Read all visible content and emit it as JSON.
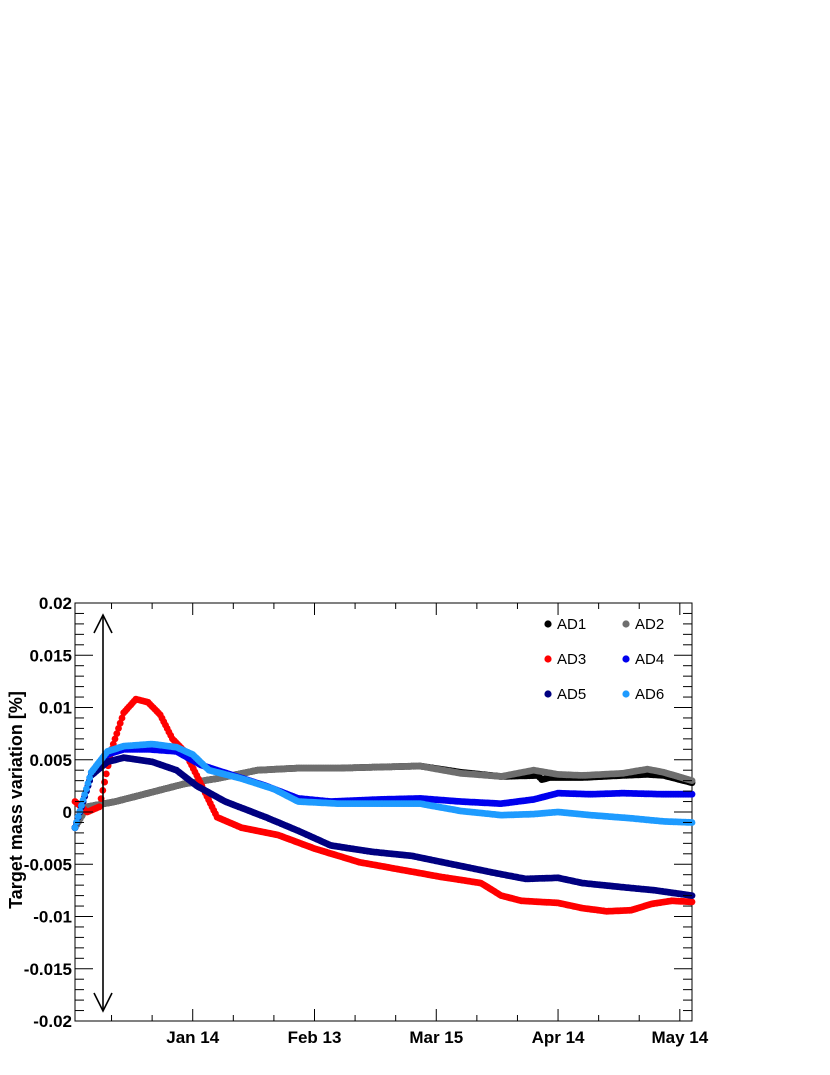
{
  "chart_data": {
    "type": "scatter",
    "title": "",
    "xlabel": "",
    "ylabel": "Target mass variation [%]",
    "x_tick_labels": [
      "Jan 14",
      "Feb 13",
      "Mar 15",
      "Apr 14",
      "May 14"
    ],
    "x_tick_values": [
      14,
      44,
      74,
      104,
      134
    ],
    "x_axis_note": "day index: Jan 14 = 14 (Dec 16 = -15 at left edge)",
    "xlim": [
      -15,
      137
    ],
    "ylim": [
      -0.02,
      0.02
    ],
    "y_tick_labels": [
      "-0.02",
      "-0.015",
      "-0.01",
      "-0.005",
      "0",
      "0.005",
      "0.01",
      "0.015",
      "0.02"
    ],
    "y_tick_values": [
      -0.02,
      -0.015,
      -0.01,
      -0.005,
      0,
      0.005,
      0.01,
      0.015,
      0.02
    ],
    "grid": false,
    "legend_position": "top-right",
    "annotation": "double-headed vertical arrow near left edge spanning full y range",
    "series": [
      {
        "name": "AD1",
        "color": "#000000",
        "points": [
          [
            -15,
            -0.0015
          ],
          [
            -12,
            0.0005
          ],
          [
            -5,
            0.001
          ],
          [
            5,
            0.002
          ],
          [
            12,
            0.0027
          ],
          [
            20,
            0.0032
          ],
          [
            30,
            0.004
          ],
          [
            40,
            0.0042
          ],
          [
            50,
            0.0042
          ],
          [
            60,
            0.0043
          ],
          [
            70,
            0.0044
          ],
          [
            80,
            0.0038
          ],
          [
            90,
            0.0034
          ],
          [
            99,
            0.0035
          ],
          [
            100,
            0.0031
          ],
          [
            102,
            0.0033
          ],
          [
            110,
            0.0033
          ],
          [
            120,
            0.0035
          ],
          [
            126,
            0.0036
          ],
          [
            130,
            0.0035
          ],
          [
            137,
            0.0028
          ]
        ]
      },
      {
        "name": "AD2",
        "color": "#6e6e6e",
        "points": [
          [
            -15,
            -0.0015
          ],
          [
            -12,
            0.0005
          ],
          [
            -5,
            0.001
          ],
          [
            5,
            0.002
          ],
          [
            12,
            0.0027
          ],
          [
            20,
            0.0032
          ],
          [
            30,
            0.004
          ],
          [
            40,
            0.0042
          ],
          [
            50,
            0.0042
          ],
          [
            60,
            0.0043
          ],
          [
            70,
            0.0044
          ],
          [
            80,
            0.0037
          ],
          [
            90,
            0.0034
          ],
          [
            98,
            0.004
          ],
          [
            104,
            0.0036
          ],
          [
            110,
            0.0035
          ],
          [
            120,
            0.0037
          ],
          [
            126,
            0.0041
          ],
          [
            130,
            0.0038
          ],
          [
            137,
            0.003
          ]
        ]
      },
      {
        "name": "AD3",
        "color": "#ff0000",
        "points": [
          [
            -15,
            0.001
          ],
          [
            -12,
            0
          ],
          [
            -9,
            0.0005
          ],
          [
            -6,
            0.006
          ],
          [
            -3,
            0.0095
          ],
          [
            0,
            0.0108
          ],
          [
            3,
            0.0105
          ],
          [
            6,
            0.0093
          ],
          [
            9,
            0.007
          ],
          [
            12,
            0.0058
          ],
          [
            15,
            0.0035
          ],
          [
            20,
            -0.0005
          ],
          [
            26,
            -0.0015
          ],
          [
            35,
            -0.0022
          ],
          [
            44,
            -0.0035
          ],
          [
            55,
            -0.0048
          ],
          [
            65,
            -0.0055
          ],
          [
            75,
            -0.0062
          ],
          [
            85,
            -0.0068
          ],
          [
            90,
            -0.008
          ],
          [
            95,
            -0.0085
          ],
          [
            104,
            -0.0087
          ],
          [
            110,
            -0.0092
          ],
          [
            116,
            -0.0095
          ],
          [
            122,
            -0.0094
          ],
          [
            127,
            -0.0088
          ],
          [
            132,
            -0.0085
          ],
          [
            137,
            -0.0086
          ]
        ]
      },
      {
        "name": "AD4",
        "color": "#0000ee",
        "points": [
          [
            -15,
            -0.0015
          ],
          [
            -11,
            0.0035
          ],
          [
            -7,
            0.0055
          ],
          [
            -3,
            0.006
          ],
          [
            3,
            0.006
          ],
          [
            10,
            0.0058
          ],
          [
            16,
            0.0045
          ],
          [
            24,
            0.0035
          ],
          [
            32,
            0.0025
          ],
          [
            40,
            0.0013
          ],
          [
            48,
            0.001
          ],
          [
            60,
            0.0012
          ],
          [
            70,
            0.0013
          ],
          [
            80,
            0.001
          ],
          [
            90,
            0.0008
          ],
          [
            98,
            0.0012
          ],
          [
            104,
            0.0018
          ],
          [
            112,
            0.0017
          ],
          [
            120,
            0.0018
          ],
          [
            130,
            0.0017
          ],
          [
            137,
            0.0017
          ]
        ]
      },
      {
        "name": "AD5",
        "color": "#000080",
        "points": [
          [
            -15,
            -0.0015
          ],
          [
            -11,
            0.0035
          ],
          [
            -7,
            0.0048
          ],
          [
            -3,
            0.0052
          ],
          [
            4,
            0.0048
          ],
          [
            10,
            0.004
          ],
          [
            15,
            0.0025
          ],
          [
            22,
            0.001
          ],
          [
            32,
            -0.0005
          ],
          [
            40,
            -0.0018
          ],
          [
            48,
            -0.0032
          ],
          [
            58,
            -0.0038
          ],
          [
            68,
            -0.0042
          ],
          [
            78,
            -0.005
          ],
          [
            88,
            -0.0058
          ],
          [
            96,
            -0.0064
          ],
          [
            104,
            -0.0063
          ],
          [
            110,
            -0.0068
          ],
          [
            120,
            -0.0072
          ],
          [
            128,
            -0.0075
          ],
          [
            137,
            -0.008
          ]
        ]
      },
      {
        "name": "AD6",
        "color": "#1e9bff",
        "points": [
          [
            -15,
            -0.0015
          ],
          [
            -11,
            0.0038
          ],
          [
            -7,
            0.0058
          ],
          [
            -3,
            0.0063
          ],
          [
            4,
            0.0065
          ],
          [
            10,
            0.0062
          ],
          [
            14,
            0.0055
          ],
          [
            18,
            0.004
          ],
          [
            26,
            0.0032
          ],
          [
            34,
            0.0022
          ],
          [
            40,
            0.001
          ],
          [
            50,
            0.0008
          ],
          [
            60,
            0.0008
          ],
          [
            70,
            0.0008
          ],
          [
            80,
            0.0001
          ],
          [
            90,
            -0.0003
          ],
          [
            98,
            -0.0002
          ],
          [
            104,
            0
          ],
          [
            112,
            -0.0003
          ],
          [
            122,
            -0.0006
          ],
          [
            130,
            -0.0009
          ],
          [
            137,
            -0.001
          ]
        ]
      }
    ]
  }
}
